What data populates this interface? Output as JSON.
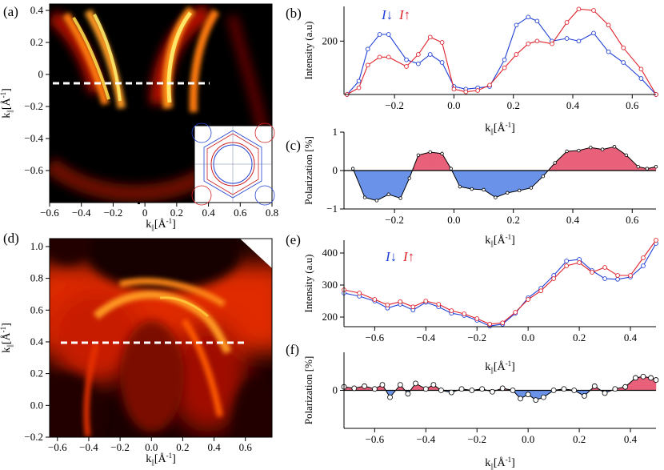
{
  "chart_data": [
    {
      "id": "a",
      "type": "heatmap",
      "panel_label": "(a)",
      "xlabel": "k||[Å-1]",
      "ylabel": "k||[Å-1]",
      "xlim": [
        -0.6,
        0.8
      ],
      "ylim": [
        -0.8,
        0.44
      ],
      "xticks": [
        -0.6,
        -0.4,
        -0.2,
        0.0,
        0.2,
        0.4,
        0.6,
        0.8
      ],
      "yticks": [
        -0.6,
        -0.4,
        -0.2,
        0.0,
        0.2,
        0.4
      ],
      "cut_line": {
        "y": -0.05,
        "x0": -0.56,
        "x1": 0.47
      },
      "inset": "Fermi surface contour sketch (blue/red)"
    },
    {
      "id": "b",
      "type": "line",
      "panel_label": "(b)",
      "xlabel": "k||[Å-1]",
      "ylabel": "Intensity (a.u)",
      "xlim": [
        -0.37,
        0.68
      ],
      "ylim": [
        0,
        330
      ],
      "xticks": [
        -0.2,
        0.0,
        0.2,
        0.4,
        0.6
      ],
      "yticks": [
        200
      ],
      "legend": [
        "I↓",
        "I↑"
      ],
      "series": [
        {
          "name": "I↓",
          "color": "#1f3fd6",
          "x": [
            -0.36,
            -0.32,
            -0.29,
            -0.25,
            -0.22,
            -0.16,
            -0.12,
            -0.08,
            -0.04,
            0.0,
            0.04,
            0.08,
            0.12,
            0.17,
            0.21,
            0.25,
            0.28,
            0.33,
            0.38,
            0.42,
            0.47,
            0.52,
            0.57,
            0.63,
            0.68
          ],
          "y": [
            0,
            50,
            170,
            225,
            225,
            130,
            115,
            150,
            120,
            30,
            20,
            25,
            30,
            130,
            260,
            290,
            275,
            200,
            210,
            200,
            230,
            160,
            120,
            60,
            0
          ]
        },
        {
          "name": "I↑",
          "color": "#e0212a",
          "x": [
            -0.36,
            -0.32,
            -0.29,
            -0.25,
            -0.22,
            -0.16,
            -0.12,
            -0.08,
            -0.04,
            0.0,
            0.04,
            0.08,
            0.12,
            0.17,
            0.21,
            0.25,
            0.28,
            0.33,
            0.38,
            0.42,
            0.47,
            0.52,
            0.57,
            0.63,
            0.68
          ],
          "y": [
            0,
            25,
            110,
            140,
            140,
            105,
            150,
            215,
            195,
            20,
            10,
            15,
            35,
            100,
            150,
            190,
            200,
            190,
            270,
            320,
            315,
            260,
            175,
            95,
            0
          ]
        }
      ]
    },
    {
      "id": "c",
      "type": "area",
      "panel_label": "(c)",
      "xlabel": "k||[Å-1]",
      "ylabel": "Polarization [%]",
      "xlim": [
        -0.37,
        0.68
      ],
      "ylim": [
        -1,
        1
      ],
      "xticks": [
        -0.2,
        0.0,
        0.2,
        0.4,
        0.6
      ],
      "yticks": [
        -1,
        0,
        1
      ],
      "series": [
        {
          "name": "Polarization",
          "x": [
            -0.34,
            -0.3,
            -0.26,
            -0.22,
            -0.18,
            -0.15,
            -0.12,
            -0.08,
            -0.04,
            -0.01,
            0.02,
            0.06,
            0.1,
            0.14,
            0.18,
            0.22,
            0.26,
            0.3,
            0.34,
            0.38,
            0.42,
            0.46,
            0.5,
            0.54,
            0.58,
            0.62,
            0.65,
            0.68
          ],
          "y": [
            0.05,
            -0.7,
            -0.78,
            -0.62,
            -0.72,
            -0.2,
            0.4,
            0.48,
            0.44,
            0.05,
            -0.42,
            -0.48,
            -0.5,
            -0.7,
            -0.58,
            -0.52,
            -0.45,
            -0.15,
            0.2,
            0.5,
            0.52,
            0.6,
            0.55,
            0.62,
            0.4,
            0.1,
            0.05,
            0.1
          ]
        }
      ]
    },
    {
      "id": "d",
      "type": "heatmap",
      "panel_label": "(d)",
      "xlabel": "k||[Å-1]",
      "ylabel": "k||[Å-1]",
      "xlim": [
        -0.65,
        0.77
      ],
      "ylim": [
        -0.2,
        1.05
      ],
      "xticks": [
        -0.6,
        -0.4,
        -0.2,
        0.0,
        0.2,
        0.4,
        0.6
      ],
      "yticks": [
        -0.2,
        0.0,
        0.2,
        0.4,
        0.6,
        0.8,
        1.0
      ],
      "cut_line": {
        "y": 0.39,
        "x0": -0.6,
        "x1": 0.62
      }
    },
    {
      "id": "e",
      "type": "line",
      "panel_label": "(e)",
      "xlabel": "k||[Å-1]",
      "ylabel": "Intensity (a.u)",
      "xlim": [
        -0.72,
        0.5
      ],
      "ylim": [
        170,
        440
      ],
      "xticks": [
        -0.6,
        -0.4,
        -0.2,
        0.0,
        0.2,
        0.4
      ],
      "yticks": [
        200,
        300,
        400
      ],
      "legend": [
        "I↓",
        "I↑"
      ],
      "series": [
        {
          "name": "I↓",
          "color": "#1f3fd6",
          "x": [
            -0.72,
            -0.66,
            -0.6,
            -0.55,
            -0.5,
            -0.45,
            -0.4,
            -0.35,
            -0.3,
            -0.25,
            -0.2,
            -0.15,
            -0.1,
            -0.05,
            0.0,
            0.05,
            0.1,
            0.15,
            0.2,
            0.25,
            0.3,
            0.35,
            0.4,
            0.45,
            0.5
          ],
          "y": [
            275,
            265,
            250,
            228,
            240,
            222,
            246,
            232,
            212,
            205,
            190,
            172,
            178,
            212,
            260,
            290,
            330,
            375,
            380,
            345,
            320,
            318,
            325,
            360,
            430
          ]
        },
        {
          "name": "I↑",
          "color": "#e0212a",
          "x": [
            -0.72,
            -0.66,
            -0.6,
            -0.55,
            -0.5,
            -0.45,
            -0.4,
            -0.35,
            -0.3,
            -0.25,
            -0.2,
            -0.15,
            -0.1,
            -0.05,
            0.0,
            0.05,
            0.1,
            0.15,
            0.2,
            0.25,
            0.3,
            0.35,
            0.4,
            0.45,
            0.5
          ],
          "y": [
            285,
            275,
            255,
            238,
            248,
            232,
            250,
            240,
            220,
            210,
            195,
            178,
            182,
            215,
            255,
            282,
            320,
            360,
            370,
            340,
            355,
            330,
            330,
            385,
            440
          ]
        }
      ]
    },
    {
      "id": "f",
      "type": "area",
      "panel_label": "(f)",
      "xlabel": "k||[Å-1]",
      "ylabel": "Polarization [%]",
      "xlim": [
        -0.72,
        0.5
      ],
      "ylim": [
        -0.55,
        0.55
      ],
      "xticks": [
        -0.6,
        -0.4,
        -0.2,
        0.0,
        0.2,
        0.4
      ],
      "yticks": [
        0
      ],
      "series": [
        {
          "name": "Polarization",
          "x": [
            -0.72,
            -0.68,
            -0.64,
            -0.6,
            -0.57,
            -0.54,
            -0.5,
            -0.47,
            -0.44,
            -0.4,
            -0.37,
            -0.34,
            -0.3,
            -0.26,
            -0.22,
            -0.18,
            -0.14,
            -0.1,
            -0.06,
            -0.03,
            0.0,
            0.03,
            0.06,
            0.1,
            0.14,
            0.18,
            0.22,
            0.26,
            0.3,
            0.34,
            0.38,
            0.42,
            0.45,
            0.48,
            0.5
          ],
          "y": [
            0.05,
            0.03,
            0.06,
            0.02,
            0.08,
            -0.1,
            0.08,
            -0.05,
            0.1,
            0.02,
            0.08,
            0.0,
            -0.03,
            0.02,
            0.0,
            0.02,
            -0.02,
            0.03,
            0.0,
            -0.12,
            -0.06,
            -0.14,
            -0.1,
            0.0,
            0.02,
            0.0,
            -0.08,
            0.06,
            -0.04,
            0.02,
            0.05,
            0.18,
            0.2,
            0.18,
            0.15
          ]
        }
      ]
    }
  ]
}
